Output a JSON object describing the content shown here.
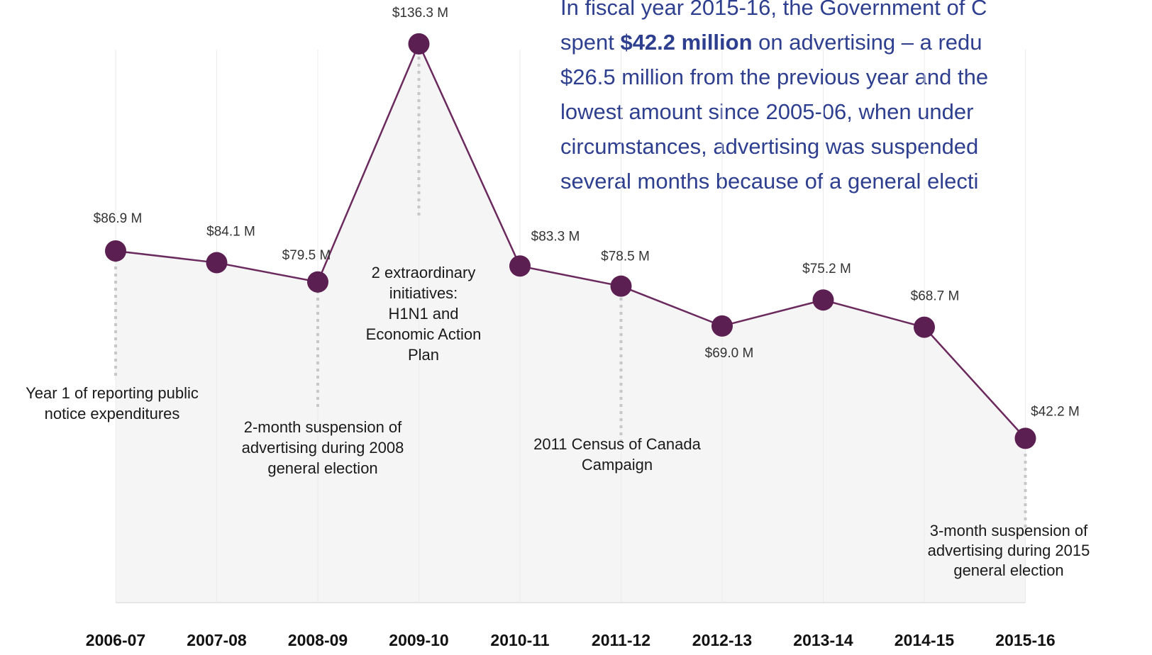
{
  "intro": {
    "lines": [
      {
        "pre": "In fiscal year 2015-16, the Government of C",
        "bold": "",
        "post": ""
      },
      {
        "pre": "spent ",
        "bold": "$42.2 million",
        "post": " on advertising – a redu"
      },
      {
        "pre": "$26.5 million from the previous year and the",
        "bold": "",
        "post": ""
      },
      {
        "pre": "lowest amount since 2005-06, when under",
        "bold": "",
        "post": ""
      },
      {
        "pre": "circumstances, advertising was suspended",
        "bold": "",
        "post": ""
      },
      {
        "pre": "several months because of a general electi",
        "bold": "",
        "post": ""
      }
    ]
  },
  "colors": {
    "line": "#6b2a5e",
    "marker": "#5c1f52",
    "area": "#ededed",
    "grid": "#ebebeb",
    "dotted": "#c8c8c8",
    "text": "#1a1a1a",
    "intro": "#2e3f8f"
  },
  "chart_data": {
    "type": "line",
    "categories": [
      "2006-07",
      "2007-08",
      "2008-09",
      "2009-10",
      "2010-11",
      "2011-12",
      "2012-13",
      "2013-14",
      "2014-15",
      "2015-16"
    ],
    "values": [
      86.9,
      84.1,
      79.5,
      136.3,
      83.3,
      78.5,
      69.0,
      75.2,
      68.7,
      42.2
    ],
    "value_labels": [
      "$86.9 M",
      "$84.1 M",
      "$79.5 M",
      "$136.3 M",
      "$83.3 M",
      "$78.5 M",
      "$69.0 M",
      "$75.2 M",
      "$68.7 M",
      "$42.2 M"
    ],
    "annotations": [
      {
        "category": "2006-07",
        "lines": [
          "Year 1 of reporting public",
          "notice expenditures"
        ]
      },
      {
        "category": "2008-09",
        "lines": [
          "2-month suspension of",
          "advertising during 2008",
          "general election"
        ]
      },
      {
        "category": "2009-10",
        "lines": [
          "2 extraordinary",
          "initiatives:",
          "H1N1 and",
          "Economic Action",
          "Plan"
        ]
      },
      {
        "category": "2011-12",
        "lines": [
          "2011 Census of Canada",
          "Campaign"
        ]
      },
      {
        "category": "2015-16",
        "lines": [
          "3-month suspension of",
          "advertising during 2015",
          "general election"
        ]
      }
    ],
    "title": "",
    "xlabel": "",
    "ylabel": "",
    "grid": true,
    "legend": "none"
  }
}
